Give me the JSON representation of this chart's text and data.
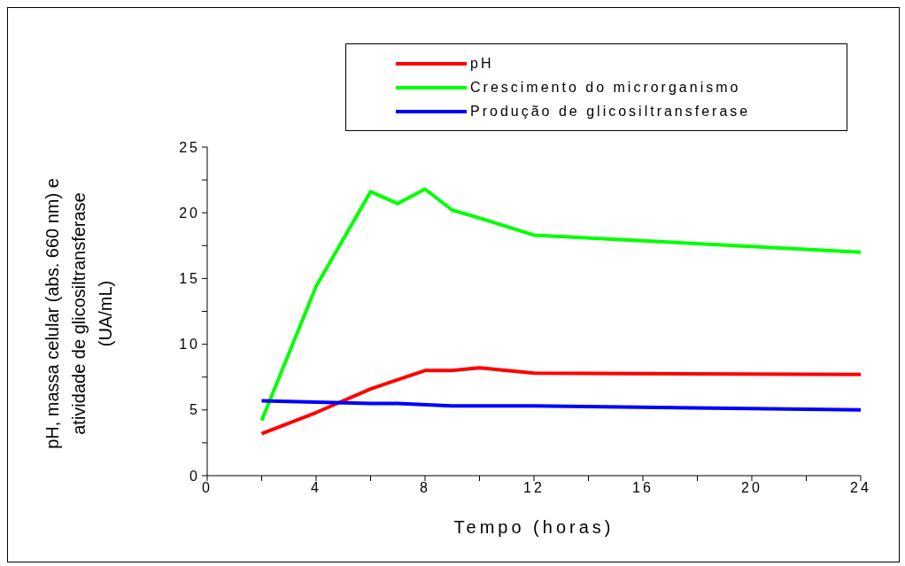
{
  "chart_data": {
    "type": "line",
    "xlabel": "Tempo (horas)",
    "ylabel": "pH, massa celular (abs. 660 nm) e\natividade de glicosiltransferase\n(UA/mL)",
    "xlim": [
      0,
      24
    ],
    "xticks": [
      0,
      {
        "value": 2,
        "label": null
      },
      4,
      {
        "value": 6,
        "label": null
      },
      8,
      {
        "value": 10,
        "label": null
      },
      12,
      {
        "value": 14,
        "label": null
      },
      16,
      {
        "value": 18,
        "label": null
      },
      20,
      {
        "value": 22,
        "label": null
      },
      24
    ],
    "ylim": [
      0,
      25
    ],
    "yticks": [
      0,
      {
        "value": 2.5,
        "label": null
      },
      5,
      {
        "value": 7.5,
        "label": null
      },
      10,
      {
        "value": 12.5,
        "label": null
      },
      15,
      {
        "value": 17.5,
        "label": null
      },
      20,
      {
        "value": 22.5,
        "label": null
      },
      25
    ],
    "grid": false,
    "legend": "top right",
    "marker": "none",
    "line_style": "solid",
    "series": [
      {
        "name": "pH",
        "color": "#ff0000",
        "x": [
          2,
          4,
          6,
          7,
          8,
          9,
          10,
          12,
          24
        ],
        "values": [
          3.2,
          4.8,
          6.6,
          7.3,
          8.0,
          8.0,
          8.2,
          7.8,
          7.7
        ]
      },
      {
        "name": "Crescimento do microrganismo",
        "color": "#00ff00",
        "x": [
          2,
          4,
          6,
          7,
          8,
          9,
          10,
          12,
          24
        ],
        "values": [
          4.2,
          14.4,
          21.6,
          20.7,
          21.8,
          20.2,
          19.6,
          18.3,
          17.0
        ]
      },
      {
        "name": "Produção de glicosiltransferase",
        "color": "#0000ff",
        "x": [
          2,
          4,
          6,
          7,
          9,
          12,
          24
        ],
        "values": [
          5.7,
          5.6,
          5.5,
          5.5,
          5.3,
          5.3,
          5.0
        ]
      }
    ]
  }
}
